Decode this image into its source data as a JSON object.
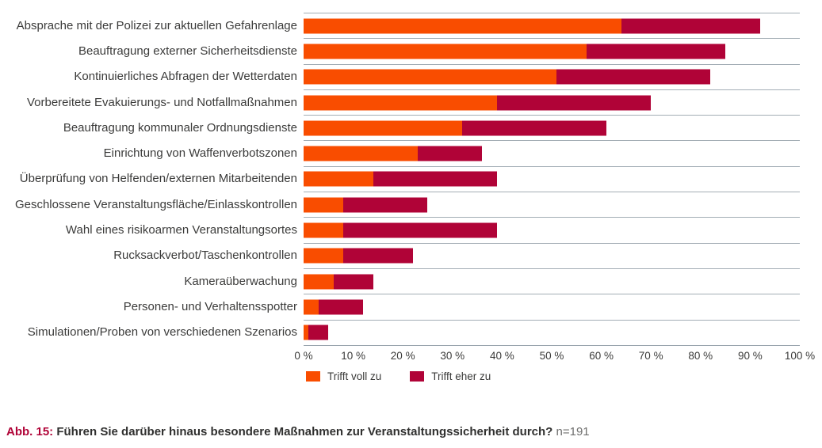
{
  "chart_data": {
    "type": "bar",
    "orientation": "horizontal",
    "stacked": true,
    "title": "",
    "xlabel": "",
    "ylabel": "",
    "xlim": [
      0,
      100
    ],
    "x_tick_labels": [
      "0 %",
      "10 %",
      "20 %",
      "30 %",
      "40 %",
      "50 %",
      "60 %",
      "70 %",
      "80 %",
      "90 %",
      "100 %"
    ],
    "grid": "row-separators-horizontal",
    "legend_position": "bottom",
    "categories": [
      "Absprache mit der Polizei zur aktuellen Gefahrenlage",
      "Beauftragung externer Sicherheitsdienste",
      "Kontinuierliches Abfragen der Wetterdaten",
      "Vorbereitete Evakuierungs- und Notfallmaßnahmen",
      "Beauftragung kommunaler Ordnungsdienste",
      "Einrichtung von Waffenverbotszonen",
      "Überprüfung von Helfenden/externen Mitarbeitenden",
      "Geschlossene Veranstaltungsfläche/Einlasskontrollen",
      "Wahl eines risikoarmen Veranstaltungsortes",
      "Rucksackverbot/Taschenkontrollen",
      "Kameraüberwachung",
      "Personen- und Verhaltensspotter",
      "Simulationen/Proben von verschiedenen Szenarios"
    ],
    "series": [
      {
        "name": "Trifft voll zu",
        "color": "#f94d00",
        "values": [
          64,
          57,
          51,
          39,
          32,
          23,
          14,
          8,
          8,
          8,
          6,
          3,
          1
        ]
      },
      {
        "name": "Trifft eher zu",
        "color": "#b00337",
        "values": [
          28,
          28,
          31,
          31,
          29,
          13,
          25,
          17,
          31,
          14,
          8,
          9,
          4
        ]
      }
    ]
  },
  "legend": {
    "items": [
      {
        "label": "Trifft voll zu",
        "color": "#f94d00"
      },
      {
        "label": "Trifft eher zu",
        "color": "#b00337"
      }
    ]
  },
  "caption": {
    "prefix": "Abb. 15:",
    "question": "Führen Sie darüber hinaus besondere Maßnahmen zur Veranstaltungssicherheit durch?",
    "sample": "n=191"
  },
  "colors": {
    "gridline": "#a3adb5",
    "axis_line": "#9aa5ae",
    "text": "#3b3b3a",
    "caption_prefix": "#b00337",
    "sample_text": "#6f6f6e"
  }
}
